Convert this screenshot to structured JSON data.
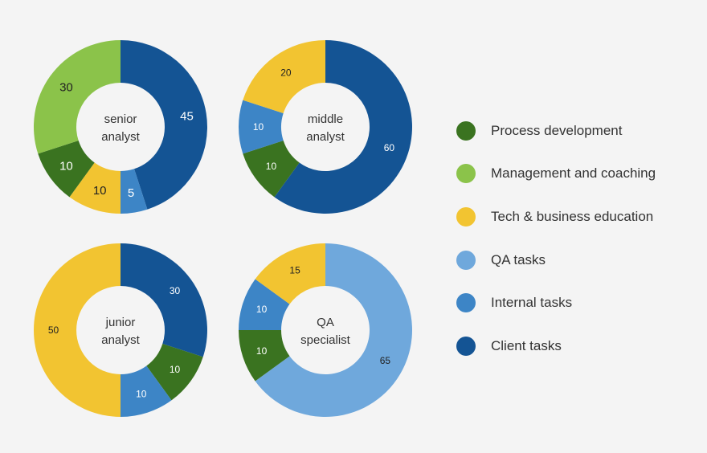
{
  "chart_data": [
    {
      "type": "pie",
      "center_label": [
        "senior",
        "analyst"
      ],
      "categories": [
        "Client tasks",
        "Internal tasks",
        "Tech & business education",
        "Process development",
        "Management and coaching"
      ],
      "values": [
        45,
        5,
        10,
        10,
        30
      ]
    },
    {
      "type": "pie",
      "center_label": [
        "middle",
        "analyst"
      ],
      "categories": [
        "Client tasks",
        "Process development",
        "Internal tasks",
        "Tech & business education"
      ],
      "values": [
        60,
        10,
        10,
        20
      ]
    },
    {
      "type": "pie",
      "center_label": [
        "junior",
        "analyst"
      ],
      "categories": [
        "Client tasks",
        "Process development",
        "Internal tasks",
        "Tech & business education"
      ],
      "values": [
        30,
        10,
        10,
        50
      ]
    },
    {
      "type": "pie",
      "center_label": [
        "QA",
        "specialist"
      ],
      "categories": [
        "QA tasks",
        "Process development",
        "Internal tasks",
        "Tech & business education"
      ],
      "values": [
        65,
        10,
        10,
        15
      ]
    }
  ],
  "legend": [
    {
      "label": "Process development",
      "color": "#3a7320"
    },
    {
      "label": "Management and coaching",
      "color": "#8bc34a"
    },
    {
      "label": "Tech & business education",
      "color": "#f2c431"
    },
    {
      "label": "QA tasks",
      "color": "#6fa8dc"
    },
    {
      "label": "Internal tasks",
      "color": "#3d85c6"
    },
    {
      "label": "Client tasks",
      "color": "#145494"
    }
  ]
}
